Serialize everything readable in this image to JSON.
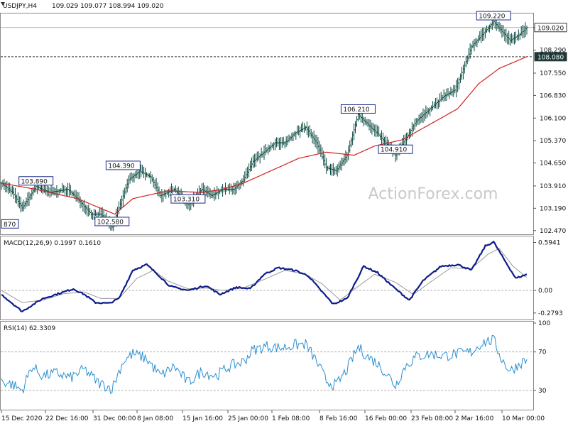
{
  "header": {
    "symbol": "USDJPY,H4",
    "ohlc": "109.029 109.077 108.994 109.020"
  },
  "watermark": "ActionForex.com",
  "colors": {
    "price": "#0b4a40",
    "ma": "#d41f1f",
    "macd": "#0d1c8a",
    "signal": "#9a9a9a",
    "rsi": "#2a8fd0",
    "label_border": "#1a2a8a",
    "last_tag": "#1a3a3a"
  },
  "chart_data": [
    {
      "type": "line",
      "panel": "price",
      "x": [
        "15 Dec 2020",
        "22 Dec 16:00",
        "31 Dec 00:00",
        "8 Jan 08:00",
        "15 Jan 16:00",
        "25 Jan 00:00",
        "1 Feb 08:00",
        "8 Feb 16:00",
        "16 Feb 00:00",
        "23 Feb 08:00",
        "2 Mar 16:00",
        "10 Mar 00:00"
      ],
      "ylim": [
        102.35,
        109.45
      ],
      "yticks": [
        "109.020",
        "108.290",
        "107.550",
        "106.830",
        "106.100",
        "105.370",
        "104.650",
        "103.910",
        "103.190",
        "102.470"
      ],
      "last_price_tag": "109.020",
      "ma_tag": "108.080",
      "annotations": [
        {
          "label": "870",
          "i": 2,
          "value": 102.87
        },
        {
          "label": "103.890",
          "i": 25,
          "value": 103.89
        },
        {
          "label": "102.580",
          "i": 80,
          "value": 102.58
        },
        {
          "label": "104.390",
          "i": 88,
          "value": 104.39
        },
        {
          "label": "103.310",
          "i": 135,
          "value": 103.31
        },
        {
          "label": "106.210",
          "i": 258,
          "value": 106.21
        },
        {
          "label": "104.910",
          "i": 285,
          "value": 104.91
        },
        {
          "label": "109.220",
          "i": 356,
          "value": 109.22
        }
      ],
      "keypoints": [
        [
          0,
          104.0
        ],
        [
          8,
          103.7
        ],
        [
          15,
          103.2
        ],
        [
          25,
          103.89
        ],
        [
          35,
          103.7
        ],
        [
          48,
          103.8
        ],
        [
          55,
          103.5
        ],
        [
          65,
          103.0
        ],
        [
          72,
          103.0
        ],
        [
          80,
          102.58
        ],
        [
          85,
          103.2
        ],
        [
          92,
          104.1
        ],
        [
          100,
          104.39
        ],
        [
          108,
          104.2
        ],
        [
          115,
          103.6
        ],
        [
          125,
          103.8
        ],
        [
          135,
          103.31
        ],
        [
          145,
          103.8
        ],
        [
          152,
          103.6
        ],
        [
          160,
          103.8
        ],
        [
          168,
          103.8
        ],
        [
          175,
          104.1
        ],
        [
          182,
          104.7
        ],
        [
          190,
          105.0
        ],
        [
          198,
          105.3
        ],
        [
          205,
          105.3
        ],
        [
          212,
          105.6
        ],
        [
          220,
          105.8
        ],
        [
          228,
          105.3
        ],
        [
          235,
          104.5
        ],
        [
          242,
          104.4
        ],
        [
          250,
          104.9
        ],
        [
          258,
          106.21
        ],
        [
          265,
          105.9
        ],
        [
          272,
          105.6
        ],
        [
          280,
          105.2
        ],
        [
          285,
          104.91
        ],
        [
          292,
          105.4
        ],
        [
          300,
          106.0
        ],
        [
          310,
          106.4
        ],
        [
          320,
          106.8
        ],
        [
          328,
          107.0
        ],
        [
          335,
          107.8
        ],
        [
          340,
          108.4
        ],
        [
          346,
          108.7
        ],
        [
          352,
          109.0
        ],
        [
          356,
          109.22
        ],
        [
          362,
          108.9
        ],
        [
          368,
          108.6
        ],
        [
          375,
          108.8
        ],
        [
          380,
          109.02
        ]
      ],
      "ma_keypoints": [
        [
          0,
          104.0
        ],
        [
          25,
          103.8
        ],
        [
          55,
          103.5
        ],
        [
          82,
          103.0
        ],
        [
          95,
          103.5
        ],
        [
          120,
          103.75
        ],
        [
          145,
          103.7
        ],
        [
          160,
          103.8
        ],
        [
          175,
          104.0
        ],
        [
          195,
          104.4
        ],
        [
          215,
          104.8
        ],
        [
          235,
          105.0
        ],
        [
          255,
          104.9
        ],
        [
          270,
          105.2
        ],
        [
          290,
          105.4
        ],
        [
          310,
          105.9
        ],
        [
          330,
          106.4
        ],
        [
          345,
          107.2
        ],
        [
          360,
          107.7
        ],
        [
          380,
          108.08
        ]
      ],
      "n_bars": 381
    },
    {
      "type": "line",
      "panel": "macd",
      "label": "MACD(12,26,9) 0.1997 0.1610",
      "ylim": [
        -0.36,
        0.66
      ],
      "yticks": [
        "0.5941",
        "0.00",
        "-0.2793"
      ],
      "macd_keypoints": [
        [
          0,
          -0.05
        ],
        [
          15,
          -0.26
        ],
        [
          30,
          -0.1
        ],
        [
          45,
          -0.02
        ],
        [
          52,
          0.02
        ],
        [
          60,
          -0.05
        ],
        [
          68,
          -0.15
        ],
        [
          78,
          -0.16
        ],
        [
          85,
          -0.1
        ],
        [
          95,
          0.25
        ],
        [
          105,
          0.32
        ],
        [
          113,
          0.2
        ],
        [
          122,
          0.05
        ],
        [
          135,
          0.0
        ],
        [
          148,
          0.06
        ],
        [
          158,
          -0.05
        ],
        [
          170,
          0.04
        ],
        [
          180,
          0.02
        ],
        [
          190,
          0.2
        ],
        [
          200,
          0.28
        ],
        [
          212,
          0.25
        ],
        [
          222,
          0.18
        ],
        [
          230,
          0.02
        ],
        [
          240,
          -0.17
        ],
        [
          250,
          -0.1
        ],
        [
          262,
          0.3
        ],
        [
          272,
          0.22
        ],
        [
          285,
          0.02
        ],
        [
          295,
          -0.12
        ],
        [
          305,
          0.12
        ],
        [
          318,
          0.3
        ],
        [
          330,
          0.32
        ],
        [
          340,
          0.25
        ],
        [
          350,
          0.55
        ],
        [
          356,
          0.6
        ],
        [
          363,
          0.4
        ],
        [
          372,
          0.15
        ],
        [
          380,
          0.2
        ]
      ],
      "signal_keypoints": [
        [
          0,
          0.0
        ],
        [
          15,
          -0.15
        ],
        [
          30,
          -0.12
        ],
        [
          45,
          -0.04
        ],
        [
          60,
          -0.02
        ],
        [
          72,
          -0.1
        ],
        [
          85,
          -0.1
        ],
        [
          98,
          0.15
        ],
        [
          110,
          0.25
        ],
        [
          120,
          0.12
        ],
        [
          135,
          0.02
        ],
        [
          148,
          0.03
        ],
        [
          160,
          0.0
        ],
        [
          175,
          0.03
        ],
        [
          192,
          0.15
        ],
        [
          205,
          0.25
        ],
        [
          220,
          0.2
        ],
        [
          232,
          0.08
        ],
        [
          245,
          -0.12
        ],
        [
          258,
          0.05
        ],
        [
          270,
          0.2
        ],
        [
          285,
          0.1
        ],
        [
          298,
          -0.05
        ],
        [
          310,
          0.1
        ],
        [
          325,
          0.28
        ],
        [
          340,
          0.27
        ],
        [
          352,
          0.45
        ],
        [
          360,
          0.52
        ],
        [
          370,
          0.3
        ],
        [
          380,
          0.16
        ]
      ]
    },
    {
      "type": "line",
      "panel": "rsi",
      "label": "RSI(14) 62.3309",
      "ylim": [
        10,
        100
      ],
      "yticks": [
        "100",
        "70",
        "30"
      ],
      "keypoints": [
        [
          0,
          40
        ],
        [
          8,
          36
        ],
        [
          15,
          30
        ],
        [
          22,
          55
        ],
        [
          30,
          45
        ],
        [
          40,
          48
        ],
        [
          50,
          43
        ],
        [
          60,
          52
        ],
        [
          70,
          38
        ],
        [
          80,
          32
        ],
        [
          88,
          60
        ],
        [
          95,
          68
        ],
        [
          105,
          63
        ],
        [
          115,
          45
        ],
        [
          125,
          55
        ],
        [
          135,
          38
        ],
        [
          145,
          50
        ],
        [
          155,
          45
        ],
        [
          165,
          55
        ],
        [
          175,
          60
        ],
        [
          182,
          72
        ],
        [
          192,
          76
        ],
        [
          202,
          74
        ],
        [
          212,
          77
        ],
        [
          220,
          78
        ],
        [
          228,
          60
        ],
        [
          235,
          40
        ],
        [
          242,
          35
        ],
        [
          250,
          52
        ],
        [
          258,
          75
        ],
        [
          265,
          65
        ],
        [
          272,
          58
        ],
        [
          280,
          45
        ],
        [
          285,
          35
        ],
        [
          292,
          55
        ],
        [
          300,
          65
        ],
        [
          310,
          68
        ],
        [
          320,
          66
        ],
        [
          330,
          68
        ],
        [
          340,
          70
        ],
        [
          348,
          80
        ],
        [
          356,
          82
        ],
        [
          362,
          62
        ],
        [
          368,
          50
        ],
        [
          375,
          58
        ],
        [
          380,
          62.33
        ]
      ]
    }
  ]
}
